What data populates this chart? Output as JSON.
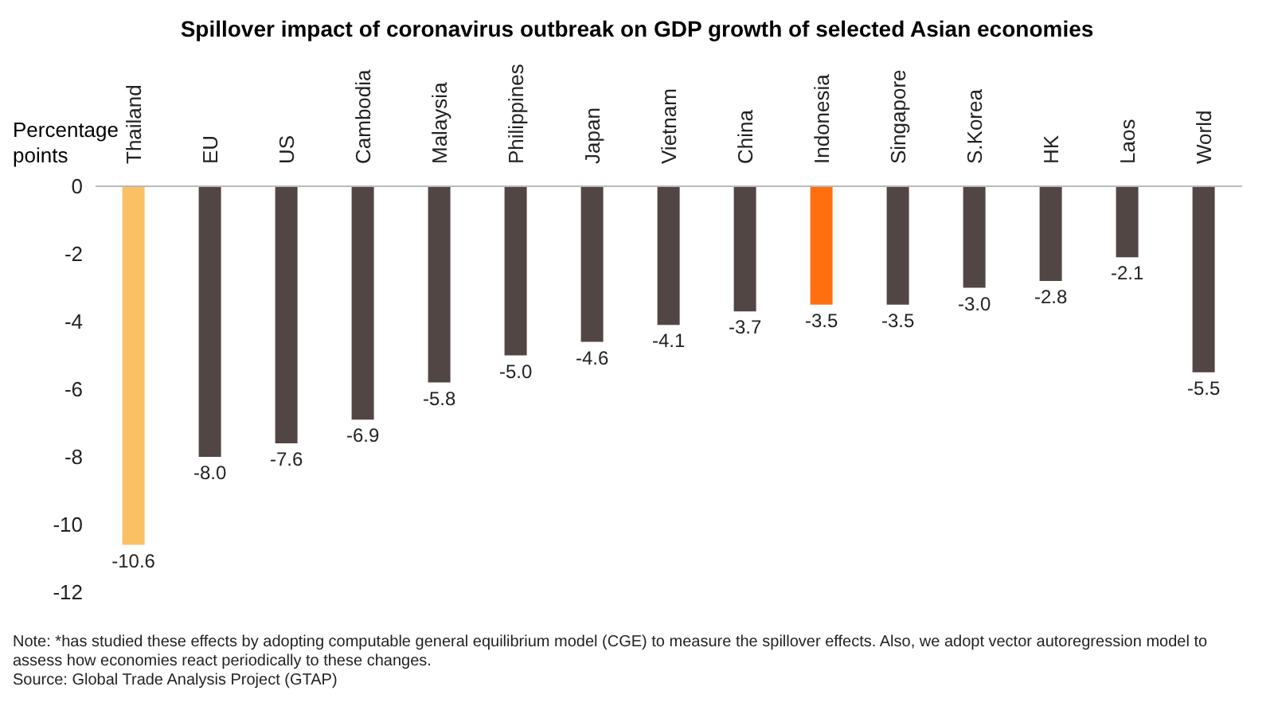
{
  "chart_data": {
    "type": "bar",
    "title": "Spillover impact of coronavirus outbreak on GDP growth of selected Asian economies",
    "ylabel": "Percentage points",
    "categories": [
      "Thailand",
      "EU",
      "US",
      "Cambodia",
      "Malaysia",
      "Philippines",
      "Japan",
      "Vietnam",
      "China",
      "Indonesia",
      "Singapore",
      "S.Korea",
      "HK",
      "Laos",
      "World"
    ],
    "values": [
      -10.6,
      -8.0,
      -7.6,
      -6.9,
      -5.8,
      -5.0,
      -4.6,
      -4.1,
      -3.7,
      -3.5,
      -3.5,
      -3.0,
      -2.8,
      -2.1,
      -5.5
    ],
    "value_labels": [
      "-10.6",
      "-8.0",
      "-7.6",
      "-6.9",
      "-5.8",
      "-5.0",
      "-4.6",
      "-4.1",
      "-3.7",
      "-3.5",
      "-3.5",
      "-3.0",
      "-2.8",
      "-2.1",
      "-5.5"
    ],
    "colors": [
      "#fcc064",
      "#524645",
      "#524645",
      "#524645",
      "#524645",
      "#524645",
      "#524645",
      "#524645",
      "#524645",
      "#ff6f0f",
      "#524645",
      "#524645",
      "#524645",
      "#524645",
      "#524645"
    ],
    "ylim": [
      -12,
      0
    ],
    "yticks": [
      0,
      -2,
      -4,
      -6,
      -8,
      -10,
      -12
    ],
    "annotations": [
      "Note: *has studied these effects by adopting computable general equilibrium model (CGE) to measure the spillover effects. Also, we adopt vector autoregression model to assess how economies react periodically to these changes.",
      "Source: Global Trade Analysis Project (GTAP)"
    ]
  }
}
